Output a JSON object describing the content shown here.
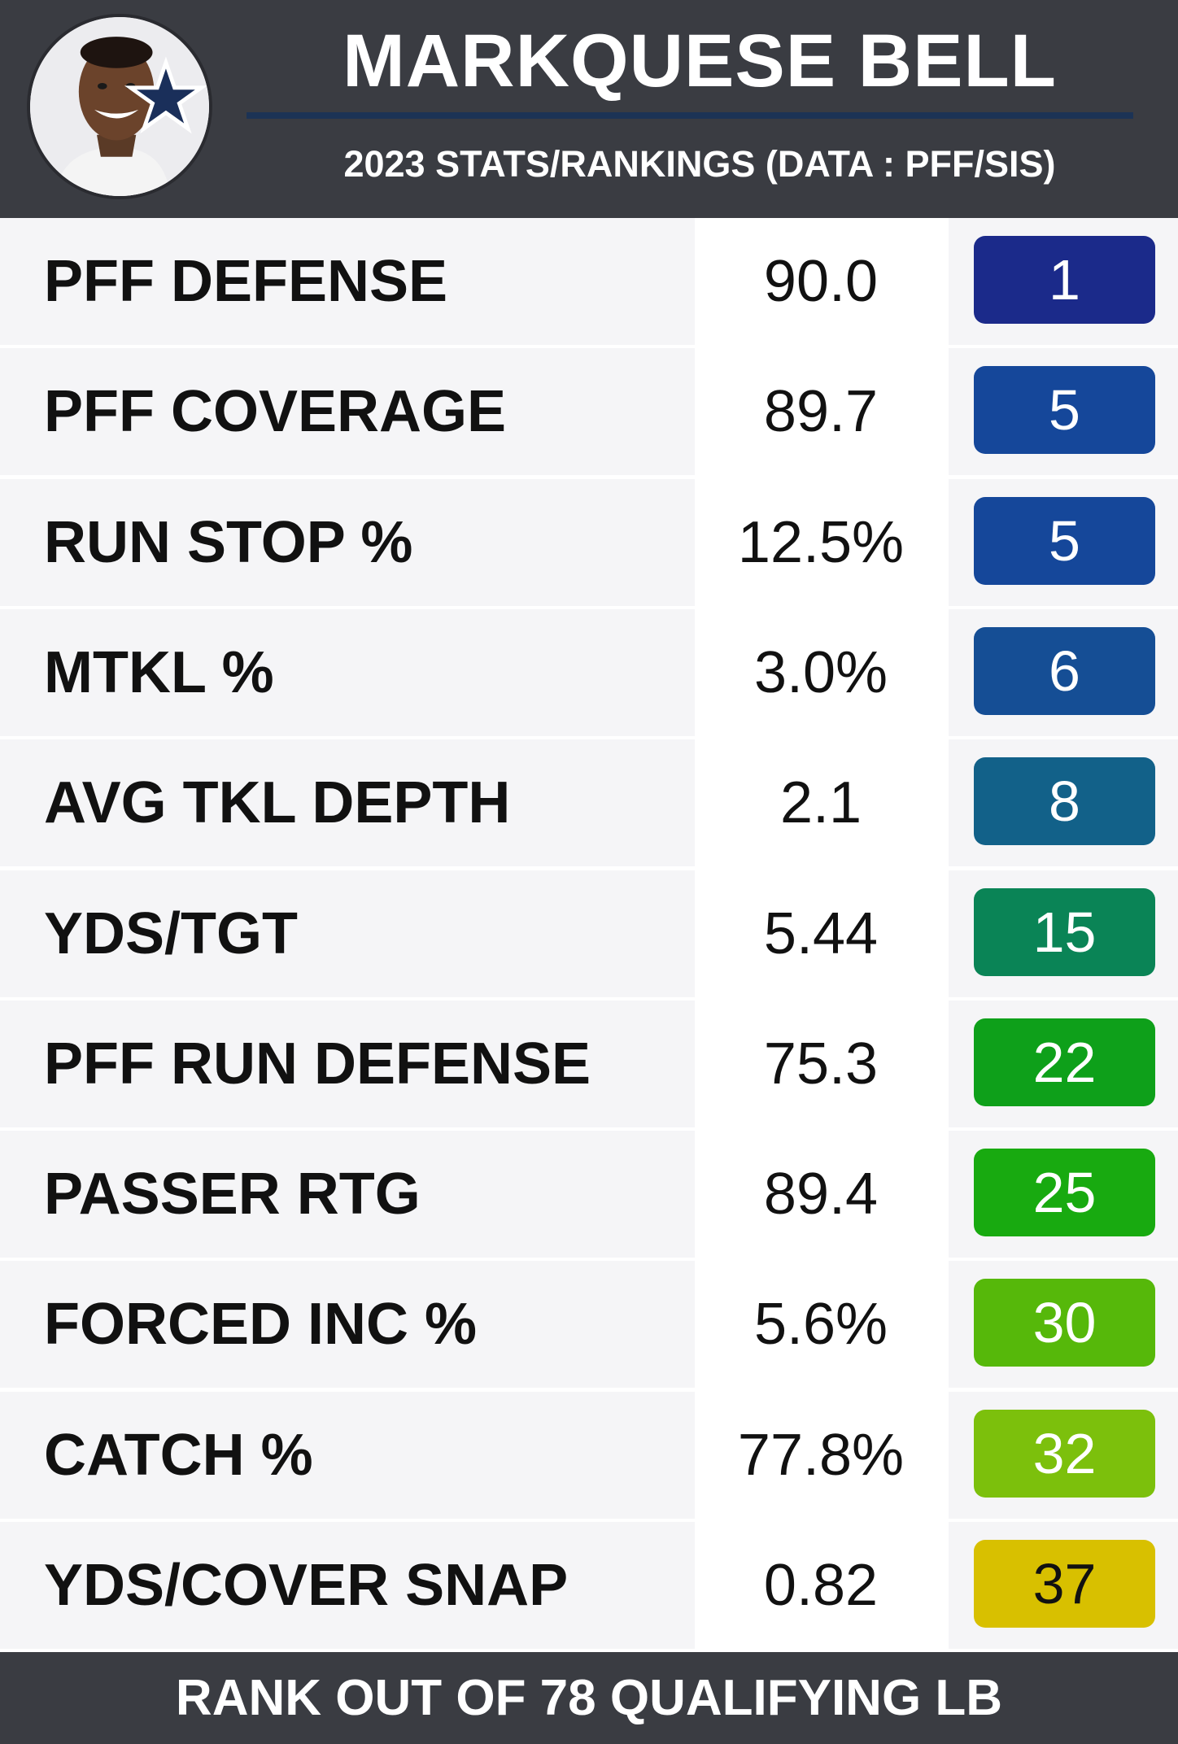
{
  "header": {
    "title": "MARKQUESE BELL",
    "subtitle": "2023 STATS/RANKINGS (DATA : PFF/SIS)",
    "avatar_icon": "player-headshot-with-star-logo-icon",
    "accent_color": "#1c3355"
  },
  "rows": [
    {
      "label": "PFF DEFENSE",
      "value": "90.0",
      "rank": "1",
      "color": "#1b2a8a",
      "text_color": "#ffffff"
    },
    {
      "label": "PFF COVERAGE",
      "value": "89.7",
      "rank": "5",
      "color": "#15479a",
      "text_color": "#ffffff"
    },
    {
      "label": "RUN STOP %",
      "value": "12.5%",
      "rank": "5",
      "color": "#15479a",
      "text_color": "#ffffff"
    },
    {
      "label": "MTKL %",
      "value": "3.0%",
      "rank": "6",
      "color": "#154e95",
      "text_color": "#ffffff"
    },
    {
      "label": "AVG TKL DEPTH",
      "value": "2.1",
      "rank": "8",
      "color": "#126189",
      "text_color": "#ffffff"
    },
    {
      "label": "YDS/TGT",
      "value": "5.44",
      "rank": "15",
      "color": "#0a8456",
      "text_color": "#ffffff"
    },
    {
      "label": "PFF RUN DEFENSE",
      "value": "75.3",
      "rank": "22",
      "color": "#0ea01a",
      "text_color": "#ffffff"
    },
    {
      "label": "PASSER RTG",
      "value": "89.4",
      "rank": "25",
      "color": "#18aa10",
      "text_color": "#ffffff"
    },
    {
      "label": "FORCED INC %",
      "value": "5.6%",
      "rank": "30",
      "color": "#56b80a",
      "text_color": "#ffffff"
    },
    {
      "label": "CATCH %",
      "value": "77.8%",
      "rank": "32",
      "color": "#7cc00c",
      "text_color": "#ffffff"
    },
    {
      "label": "YDS/COVER SNAP",
      "value": "0.82",
      "rank": "37",
      "color": "#d8c000",
      "text_color": "#111111"
    }
  ],
  "footer": {
    "text": "RANK OUT OF 78 QUALIFYING LB"
  }
}
